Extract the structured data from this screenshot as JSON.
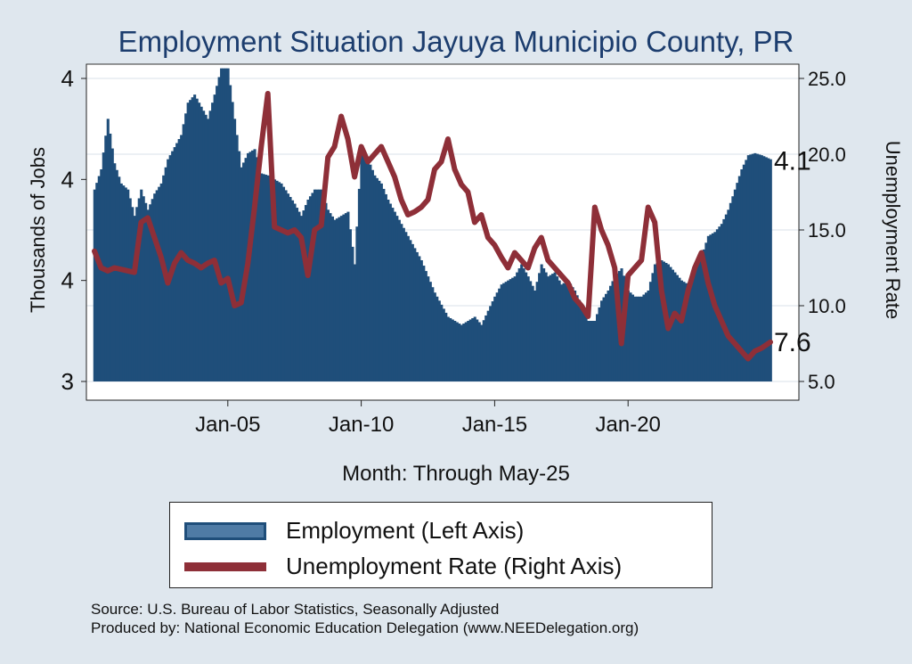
{
  "title": "Employment Situation Jayuya Municipio  County, PR",
  "chart_data": {
    "type": "bar+line",
    "x_label": "Month: Through May-25",
    "x_range": [
      "2000-01",
      "2025-05"
    ],
    "x_ticks": [
      "Jan-05",
      "Jan-10",
      "Jan-15",
      "Jan-20"
    ],
    "y_left": {
      "label": "Thousands of Jobs",
      "ticks": [
        "3",
        "4",
        "4",
        "4"
      ],
      "range": [
        3.0,
        4.5
      ]
    },
    "y_right": {
      "label": "Unemployment Rate",
      "ticks": [
        "5.0",
        "10.0",
        "15.0",
        "20.0",
        "25.0"
      ],
      "range": [
        5,
        25
      ]
    },
    "grid": true,
    "end_labels": {
      "employment": "4.1",
      "unemployment": "7.6"
    },
    "series": [
      {
        "name": "Employment (Left Axis)",
        "type": "bar",
        "axis": "left",
        "color": "#1f4e7a",
        "points": [
          [
            "2000-01",
            3.95
          ],
          [
            "2000-04",
            4.05
          ],
          [
            "2000-07",
            4.3
          ],
          [
            "2000-10",
            4.08
          ],
          [
            "2001-01",
            3.98
          ],
          [
            "2001-04",
            3.95
          ],
          [
            "2001-07",
            3.82
          ],
          [
            "2001-10",
            3.95
          ],
          [
            "2002-01",
            3.85
          ],
          [
            "2002-04",
            3.93
          ],
          [
            "2002-07",
            3.98
          ],
          [
            "2002-10",
            4.1
          ],
          [
            "2003-01",
            4.16
          ],
          [
            "2003-04",
            4.22
          ],
          [
            "2003-07",
            4.38
          ],
          [
            "2003-10",
            4.42
          ],
          [
            "2004-01",
            4.36
          ],
          [
            "2004-04",
            4.3
          ],
          [
            "2004-07",
            4.42
          ],
          [
            "2004-10",
            4.55
          ],
          [
            "2005-01",
            4.55
          ],
          [
            "2005-04",
            4.3
          ],
          [
            "2005-07",
            4.06
          ],
          [
            "2005-10",
            4.13
          ],
          [
            "2006-01",
            4.15
          ],
          [
            "2006-04",
            4.03
          ],
          [
            "2006-07",
            4.02
          ],
          [
            "2006-10",
            4.0
          ],
          [
            "2007-01",
            3.98
          ],
          [
            "2007-04",
            3.93
          ],
          [
            "2007-07",
            3.88
          ],
          [
            "2007-10",
            3.82
          ],
          [
            "2008-01",
            3.9
          ],
          [
            "2008-04",
            3.95
          ],
          [
            "2008-07",
            3.95
          ],
          [
            "2008-10",
            3.85
          ],
          [
            "2009-01",
            3.8
          ],
          [
            "2009-04",
            3.82
          ],
          [
            "2009-07",
            3.84
          ],
          [
            "2009-10",
            3.58
          ],
          [
            "2010-01",
            4.14
          ],
          [
            "2010-04",
            4.1
          ],
          [
            "2010-07",
            4.02
          ],
          [
            "2010-10",
            3.98
          ],
          [
            "2011-01",
            3.9
          ],
          [
            "2011-04",
            3.84
          ],
          [
            "2011-07",
            3.78
          ],
          [
            "2011-10",
            3.72
          ],
          [
            "2012-01",
            3.66
          ],
          [
            "2012-04",
            3.6
          ],
          [
            "2012-07",
            3.52
          ],
          [
            "2012-10",
            3.44
          ],
          [
            "2013-01",
            3.38
          ],
          [
            "2013-04",
            3.32
          ],
          [
            "2013-07",
            3.3
          ],
          [
            "2013-10",
            3.28
          ],
          [
            "2014-01",
            3.3
          ],
          [
            "2014-04",
            3.32
          ],
          [
            "2014-07",
            3.28
          ],
          [
            "2014-10",
            3.35
          ],
          [
            "2015-01",
            3.42
          ],
          [
            "2015-04",
            3.48
          ],
          [
            "2015-07",
            3.5
          ],
          [
            "2015-10",
            3.52
          ],
          [
            "2016-01",
            3.58
          ],
          [
            "2016-04",
            3.52
          ],
          [
            "2016-07",
            3.45
          ],
          [
            "2016-10",
            3.58
          ],
          [
            "2017-01",
            3.52
          ],
          [
            "2017-04",
            3.54
          ],
          [
            "2017-07",
            3.48
          ],
          [
            "2017-10",
            3.5
          ],
          [
            "2018-01",
            3.45
          ],
          [
            "2018-04",
            3.38
          ],
          [
            "2018-07",
            3.3
          ],
          [
            "2018-10",
            3.3
          ],
          [
            "2019-01",
            3.4
          ],
          [
            "2019-04",
            3.45
          ],
          [
            "2019-07",
            3.52
          ],
          [
            "2019-10",
            3.56
          ],
          [
            "2020-01",
            3.45
          ],
          [
            "2020-04",
            3.42
          ],
          [
            "2020-07",
            3.42
          ],
          [
            "2020-10",
            3.45
          ],
          [
            "2021-01",
            3.58
          ],
          [
            "2021-04",
            3.6
          ],
          [
            "2021-07",
            3.58
          ],
          [
            "2021-10",
            3.54
          ],
          [
            "2022-01",
            3.5
          ],
          [
            "2022-04",
            3.48
          ],
          [
            "2022-07",
            3.55
          ],
          [
            "2022-10",
            3.62
          ],
          [
            "2023-01",
            3.72
          ],
          [
            "2023-04",
            3.74
          ],
          [
            "2023-07",
            3.78
          ],
          [
            "2023-10",
            3.85
          ],
          [
            "2024-01",
            3.95
          ],
          [
            "2024-04",
            4.05
          ],
          [
            "2024-07",
            4.12
          ],
          [
            "2024-10",
            4.13
          ],
          [
            "2025-01",
            4.12
          ],
          [
            "2025-05",
            4.1
          ]
        ]
      },
      {
        "name": "Unemployment Rate (Right Axis)",
        "type": "line",
        "axis": "right",
        "color": "#8e2f38",
        "points": [
          [
            "2000-01",
            13.6
          ],
          [
            "2000-04",
            12.5
          ],
          [
            "2000-07",
            12.3
          ],
          [
            "2000-10",
            12.5
          ],
          [
            "2001-01",
            12.4
          ],
          [
            "2001-04",
            12.3
          ],
          [
            "2001-07",
            12.2
          ],
          [
            "2001-10",
            15.5
          ],
          [
            "2002-01",
            15.8
          ],
          [
            "2002-04",
            14.5
          ],
          [
            "2002-07",
            13.2
          ],
          [
            "2002-10",
            11.5
          ],
          [
            "2003-01",
            12.8
          ],
          [
            "2003-04",
            13.5
          ],
          [
            "2003-07",
            13.0
          ],
          [
            "2003-10",
            12.8
          ],
          [
            "2004-01",
            12.5
          ],
          [
            "2004-04",
            12.8
          ],
          [
            "2004-07",
            13.0
          ],
          [
            "2004-10",
            11.5
          ],
          [
            "2005-01",
            11.8
          ],
          [
            "2005-04",
            10.0
          ],
          [
            "2005-07",
            10.2
          ],
          [
            "2005-10",
            12.8
          ],
          [
            "2006-01",
            16.5
          ],
          [
            "2006-04",
            20.5
          ],
          [
            "2006-07",
            24.0
          ],
          [
            "2006-10",
            15.2
          ],
          [
            "2007-01",
            15.0
          ],
          [
            "2007-04",
            14.8
          ],
          [
            "2007-07",
            15.0
          ],
          [
            "2007-10",
            14.5
          ],
          [
            "2008-01",
            12.0
          ],
          [
            "2008-04",
            15.0
          ],
          [
            "2008-07",
            15.3
          ],
          [
            "2008-10",
            19.8
          ],
          [
            "2009-01",
            20.5
          ],
          [
            "2009-04",
            22.5
          ],
          [
            "2009-07",
            21.0
          ],
          [
            "2009-10",
            18.5
          ],
          [
            "2010-01",
            20.5
          ],
          [
            "2010-04",
            19.5
          ],
          [
            "2010-07",
            20.0
          ],
          [
            "2010-10",
            20.5
          ],
          [
            "2011-01",
            19.5
          ],
          [
            "2011-04",
            18.5
          ],
          [
            "2011-07",
            17.0
          ],
          [
            "2011-10",
            16.0
          ],
          [
            "2012-01",
            16.2
          ],
          [
            "2012-04",
            16.5
          ],
          [
            "2012-07",
            17.0
          ],
          [
            "2012-10",
            19.0
          ],
          [
            "2013-01",
            19.5
          ],
          [
            "2013-04",
            21.0
          ],
          [
            "2013-07",
            19.0
          ],
          [
            "2013-10",
            18.0
          ],
          [
            "2014-01",
            17.5
          ],
          [
            "2014-04",
            15.5
          ],
          [
            "2014-07",
            16.0
          ],
          [
            "2014-10",
            14.5
          ],
          [
            "2015-01",
            14.0
          ],
          [
            "2015-04",
            13.2
          ],
          [
            "2015-07",
            12.5
          ],
          [
            "2015-10",
            13.5
          ],
          [
            "2016-01",
            13.0
          ],
          [
            "2016-04",
            12.5
          ],
          [
            "2016-07",
            13.8
          ],
          [
            "2016-10",
            14.5
          ],
          [
            "2017-01",
            13.0
          ],
          [
            "2017-04",
            12.5
          ],
          [
            "2017-07",
            12.0
          ],
          [
            "2017-10",
            11.5
          ],
          [
            "2018-01",
            10.5
          ],
          [
            "2018-04",
            10.0
          ],
          [
            "2018-07",
            9.3
          ],
          [
            "2018-10",
            16.5
          ],
          [
            "2019-01",
            15.0
          ],
          [
            "2019-04",
            14.0
          ],
          [
            "2019-07",
            12.5
          ],
          [
            "2019-10",
            7.5
          ],
          [
            "2020-01",
            12.0
          ],
          [
            "2020-04",
            12.5
          ],
          [
            "2020-07",
            13.0
          ],
          [
            "2020-10",
            16.5
          ],
          [
            "2021-01",
            15.5
          ],
          [
            "2021-04",
            11.0
          ],
          [
            "2021-07",
            8.5
          ],
          [
            "2021-10",
            9.5
          ],
          [
            "2022-01",
            9.0
          ],
          [
            "2022-04",
            11.0
          ],
          [
            "2022-07",
            12.5
          ],
          [
            "2022-10",
            13.5
          ],
          [
            "2023-01",
            11.5
          ],
          [
            "2023-04",
            10.0
          ],
          [
            "2023-07",
            9.0
          ],
          [
            "2023-10",
            8.0
          ],
          [
            "2024-01",
            7.5
          ],
          [
            "2024-04",
            7.0
          ],
          [
            "2024-07",
            6.5
          ],
          [
            "2024-10",
            7.0
          ],
          [
            "2025-01",
            7.2
          ],
          [
            "2025-05",
            7.6
          ]
        ]
      }
    ]
  },
  "legend": {
    "employment_label": "Employment (Left Axis)",
    "unemployment_label": "Unemployment Rate (Right Axis)"
  },
  "source": {
    "line1": "Source: U.S. Bureau of Labor Statistics, Seasonally Adjusted",
    "line2": "Produced by: National Economic Education Delegation (www.NEEDelegation.org)"
  }
}
